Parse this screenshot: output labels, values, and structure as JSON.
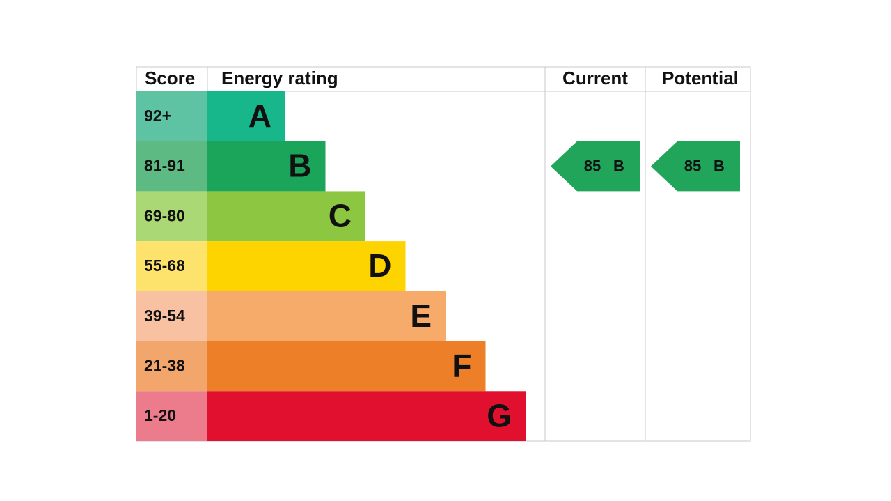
{
  "header": {
    "score": "Score",
    "energy_rating": "Energy rating",
    "current": "Current",
    "potential": "Potential"
  },
  "bands": [
    {
      "score": "92+",
      "letter": "A",
      "color": "#17b78b",
      "score_color": "#5dc3a3"
    },
    {
      "score": "81-91",
      "letter": "B",
      "color": "#1ba55a",
      "score_color": "#5eba83"
    },
    {
      "score": "69-80",
      "letter": "C",
      "color": "#8dc641",
      "score_color": "#a9d874"
    },
    {
      "score": "55-68",
      "letter": "D",
      "color": "#fdd300",
      "score_color": "#fde36b"
    },
    {
      "score": "39-54",
      "letter": "E",
      "color": "#f7ab6b",
      "score_color": "#f8c2a2"
    },
    {
      "score": "21-38",
      "letter": "F",
      "color": "#ec7f27",
      "score_color": "#f2a66c"
    },
    {
      "score": "1-20",
      "letter": "G",
      "color": "#e2102f",
      "score_color": "#ec7b8c"
    }
  ],
  "current": {
    "score": 85,
    "letter": "B",
    "color": "#21a55a"
  },
  "potential": {
    "score": 85,
    "letter": "B",
    "color": "#21a55a"
  }
}
